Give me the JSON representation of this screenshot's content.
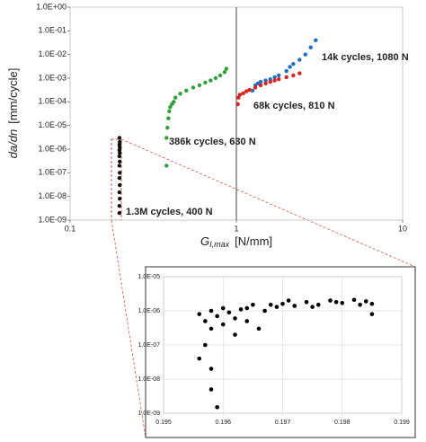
{
  "chart_data": [
    {
      "type": "scatter",
      "xlabel": {
        "symbol": "G",
        "subscript": "I,max",
        "unit": "[N/mm]"
      },
      "ylabel": {
        "symbol": "da/dn",
        "unit": "[mm/cycle]"
      },
      "xscale": "log",
      "yscale": "log",
      "xlim": [
        0.1,
        10
      ],
      "xticks": [
        0.1,
        1,
        10
      ],
      "ylim": [
        1e-09,
        1
      ],
      "yticks": [
        {
          "value": 1e-09,
          "label": "1.0E-09"
        },
        {
          "value": 1e-08,
          "label": "1.0E-08"
        },
        {
          "value": 1e-07,
          "label": "1.0E-07"
        },
        {
          "value": 1e-06,
          "label": "1.0E-06"
        },
        {
          "value": 1e-05,
          "label": "1.0E-05"
        },
        {
          "value": 0.0001,
          "label": "1.0E-04"
        },
        {
          "value": 0.001,
          "label": "1.0E-03"
        },
        {
          "value": 0.01,
          "label": "1.0E-02"
        },
        {
          "value": 0.1,
          "label": "1.0E-01"
        },
        {
          "value": 1,
          "label": "1.0E+00"
        }
      ],
      "series": [
        {
          "name": "14k cycles, 1080 N",
          "color": "#1f6fc0",
          "x": [
            1.25,
            1.3,
            1.35,
            1.4,
            1.5,
            1.6,
            1.7,
            1.8,
            2.0,
            2.1,
            2.2,
            2.4,
            2.6,
            2.8,
            3.0
          ],
          "values": [
            0.0003,
            0.0005,
            0.0006,
            0.0007,
            0.0008,
            0.0009,
            0.0011,
            0.0013,
            0.002,
            0.003,
            0.004,
            0.006,
            0.01,
            0.02,
            0.04
          ]
        },
        {
          "name": "68k cycles, 810 N",
          "color": "#e0201b",
          "x": [
            1.02,
            1.03,
            1.05,
            1.1,
            1.15,
            1.2,
            1.3,
            1.4,
            1.5,
            1.6,
            1.7,
            1.8,
            2.0,
            2.2,
            2.4
          ],
          "values": [
            8e-05,
            0.00015,
            0.0002,
            0.00023,
            0.00028,
            0.00032,
            0.0004,
            0.0005,
            0.0006,
            0.0007,
            0.0008,
            0.0009,
            0.0011,
            0.0013,
            0.0016
          ]
        },
        {
          "name": "386k cycles, 630 N",
          "color": "#2ea03a",
          "x": [
            0.38,
            0.38,
            0.385,
            0.39,
            0.395,
            0.4,
            0.41,
            0.42,
            0.43,
            0.46,
            0.5,
            0.55,
            0.6,
            0.65,
            0.7,
            0.75,
            0.8,
            0.85,
            0.87
          ],
          "values": [
            2e-07,
            3e-06,
            8e-06,
            2e-05,
            4e-05,
            6e-05,
            8e-05,
            0.0001,
            0.00015,
            0.00022,
            0.0003,
            0.0004,
            0.0005,
            0.00065,
            0.0008,
            0.001,
            0.0013,
            0.0018,
            0.0025
          ]
        },
        {
          "name": "1.3M cycles, 400 N",
          "color": "#111111",
          "x": [
            0.198,
            0.198,
            0.199,
            0.198,
            0.199,
            0.198,
            0.199,
            0.198,
            0.199,
            0.198,
            0.199,
            0.198,
            0.199,
            0.198,
            0.199,
            0.198
          ],
          "values": [
            2e-09,
            4e-09,
            8e-09,
            1.5e-08,
            3e-08,
            6e-08,
            1e-07,
            2e-07,
            3e-07,
            5e-07,
            7e-07,
            9e-07,
            1.2e-06,
            1.5e-06,
            2e-06,
            3e-06
          ]
        }
      ]
    },
    {
      "type": "scatter",
      "xscale": "linear",
      "yscale": "log",
      "xlim": [
        0.195,
        0.199
      ],
      "xticks": [
        0.195,
        0.196,
        0.197,
        0.198,
        0.199
      ],
      "ylim": [
        1e-09,
        1e-05
      ],
      "yticks": [
        {
          "value": 1e-09,
          "label": "1.0E-09"
        },
        {
          "value": 1e-08,
          "label": "1.0E-08"
        },
        {
          "value": 1e-07,
          "label": "1.0E-07"
        },
        {
          "value": 1e-06,
          "label": "1.0E-06"
        },
        {
          "value": 1e-05,
          "label": "1.0E-05"
        }
      ],
      "grid": true,
      "series": [
        {
          "color": "#000000",
          "x": [
            0.1956,
            0.1957,
            0.1958,
            0.1958,
            0.1959,
            0.196,
            0.196,
            0.1961,
            0.1962,
            0.1962,
            0.1963,
            0.1964,
            0.1965,
            0.1966,
            0.1967,
            0.1968,
            0.1969,
            0.197,
            0.1972,
            0.1974,
            0.1976,
            0.1978,
            0.198,
            0.1982,
            0.1984,
            0.1985,
            0.1985,
            0.1957,
            0.1958,
            0.1958,
            0.1959,
            0.1956,
            0.1964,
            0.1971,
            0.1975,
            0.1979,
            0.1983
          ],
          "values": [
            8e-07,
            5e-07,
            1e-06,
            3e-07,
            7e-07,
            1.2e-06,
            4e-07,
            9e-07,
            6e-07,
            2e-07,
            1.1e-06,
            5e-07,
            1.5e-06,
            3e-07,
            1e-06,
            1.5e-06,
            1.3e-06,
            1.6e-06,
            1.4e-06,
            1.8e-06,
            1.5e-06,
            2e-06,
            1.7e-06,
            2.1e-06,
            1.9e-06,
            1.6e-06,
            8e-07,
            1e-07,
            2e-08,
            5e-09,
            1.5e-09,
            4e-08,
            1.2e-06,
            2e-06,
            1.3e-06,
            1.8e-06,
            1.5e-06
          ]
        }
      ]
    }
  ]
}
